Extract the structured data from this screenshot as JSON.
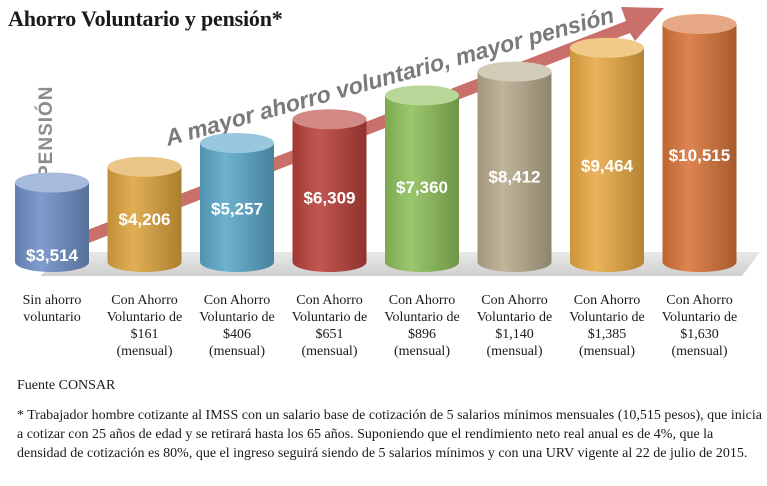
{
  "title": "Ahorro Voluntario y pensión*",
  "chart_data": {
    "type": "bar",
    "ylabel": "PENSIÓN",
    "arrow_label": "A mayor ahorro voluntario, mayor pensión",
    "categories": [
      [
        "Sin ahorro",
        "voluntario"
      ],
      [
        "Con Ahorro",
        "Voluntario de",
        "$161",
        "(mensual)"
      ],
      [
        "Con Ahorro",
        "Voluntario de",
        "$406",
        "(mensual)"
      ],
      [
        "Con Ahorro",
        "Voluntario de",
        "$651",
        "(mensual)"
      ],
      [
        "Con Ahorro",
        "Voluntario de",
        "$896",
        "(mensual)"
      ],
      [
        "Con Ahorro",
        "Voluntario de",
        "$1,140",
        "(mensual)"
      ],
      [
        "Con Ahorro",
        "Voluntario de",
        "$1,385",
        "(mensual)"
      ],
      [
        "Con Ahorro",
        "Voluntario de",
        "$1,630",
        "(mensual)"
      ]
    ],
    "values": [
      3514,
      4206,
      5257,
      6309,
      7360,
      8412,
      9464,
      10515
    ],
    "value_labels": [
      "$3,514",
      "$4,206",
      "$5,257",
      "$6,309",
      "$7,360",
      "$8,412",
      "$9,464",
      "$10,515"
    ],
    "colors": [
      "#6f8fc6",
      "#dca33e",
      "#5aa7c9",
      "#b8403a",
      "#8dbf5a",
      "#b7ab8d",
      "#e8a943",
      "#d8743a"
    ],
    "arrow_color": "#c9706a"
  },
  "source": "Fuente CONSAR",
  "footnote": "* Trabajador hombre cotizante al IMSS con un salario base de cotización de 5 salarios mínimos mensuales (10,515 pesos), que inicia a cotizar con 25 años de edad y se retirará hasta los 65 años. Suponiendo que el rendimiento neto real anual es de 4%, que la densidad de cotización es 80%, que el ingreso seguirá siendo de 5 salarios mínimos y con una URV vigente al 22 de julio de 2015."
}
